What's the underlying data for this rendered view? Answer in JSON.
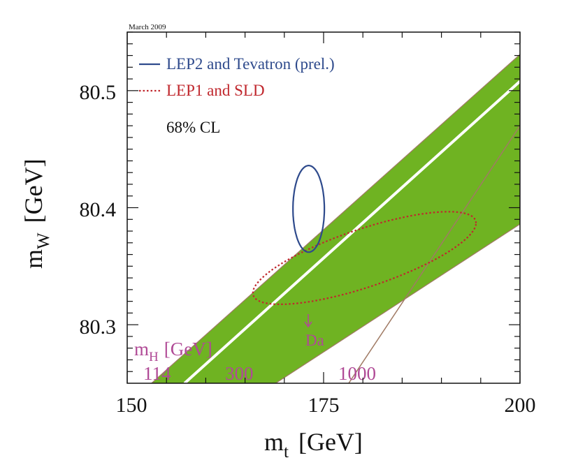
{
  "chart_data": {
    "type": "contour",
    "date_label": "March 2009",
    "x_axis": {
      "variable": "m",
      "subscript": "t",
      "unit": "[GeV]",
      "range": [
        150,
        200
      ],
      "ticks": [
        150,
        175,
        200
      ],
      "tick_labels": [
        "150",
        "175",
        "200"
      ]
    },
    "y_axis": {
      "variable": "m",
      "subscript": "W",
      "unit": "[GeV]",
      "range": [
        80.25,
        80.55
      ],
      "ticks": [
        80.3,
        80.4,
        80.5
      ],
      "tick_labels": [
        "80.3",
        "80.4",
        "80.5"
      ]
    },
    "legend": [
      {
        "label": "LEP2 and Tevatron (prel.)",
        "style": "solid",
        "color": "#2e4a8c"
      },
      {
        "label": "LEP1 and SLD",
        "style": "dotted",
        "color": "#c0272d"
      }
    ],
    "confidence_level": "68% CL",
    "direct_ellipse": {
      "center": [
        173.1,
        80.399
      ],
      "half_width_mt": 2.0,
      "half_width_mw": 0.037,
      "color": "#2e4a8c"
    },
    "indirect_ellipse": {
      "center": [
        180.2,
        80.357
      ],
      "half_axis_1": 14.2,
      "half_axis_2": 0.026,
      "slope_mw_per_mt": 0.0021,
      "color": "#c0272d"
    },
    "sm_band": {
      "color": "#6fb322",
      "edge_color": "#a07a64",
      "upper_edge": [
        [
          153.1,
          80.25
        ],
        [
          200,
          80.531
        ]
      ],
      "lower_edge": [
        [
          168.9,
          80.25
        ],
        [
          200,
          80.386
        ]
      ],
      "white_line": [
        [
          157.3,
          80.25
        ],
        [
          200,
          80.508
        ]
      ],
      "higgs_line": [
        [
          178.2,
          80.25
        ],
        [
          200,
          80.47
        ]
      ]
    },
    "mh_label": {
      "variable": "m",
      "subscript": "H",
      "unit": "[GeV]",
      "color": "#b04a96"
    },
    "mh_values": [
      "114",
      "300",
      "1000"
    ],
    "arrow_label": "Da"
  }
}
